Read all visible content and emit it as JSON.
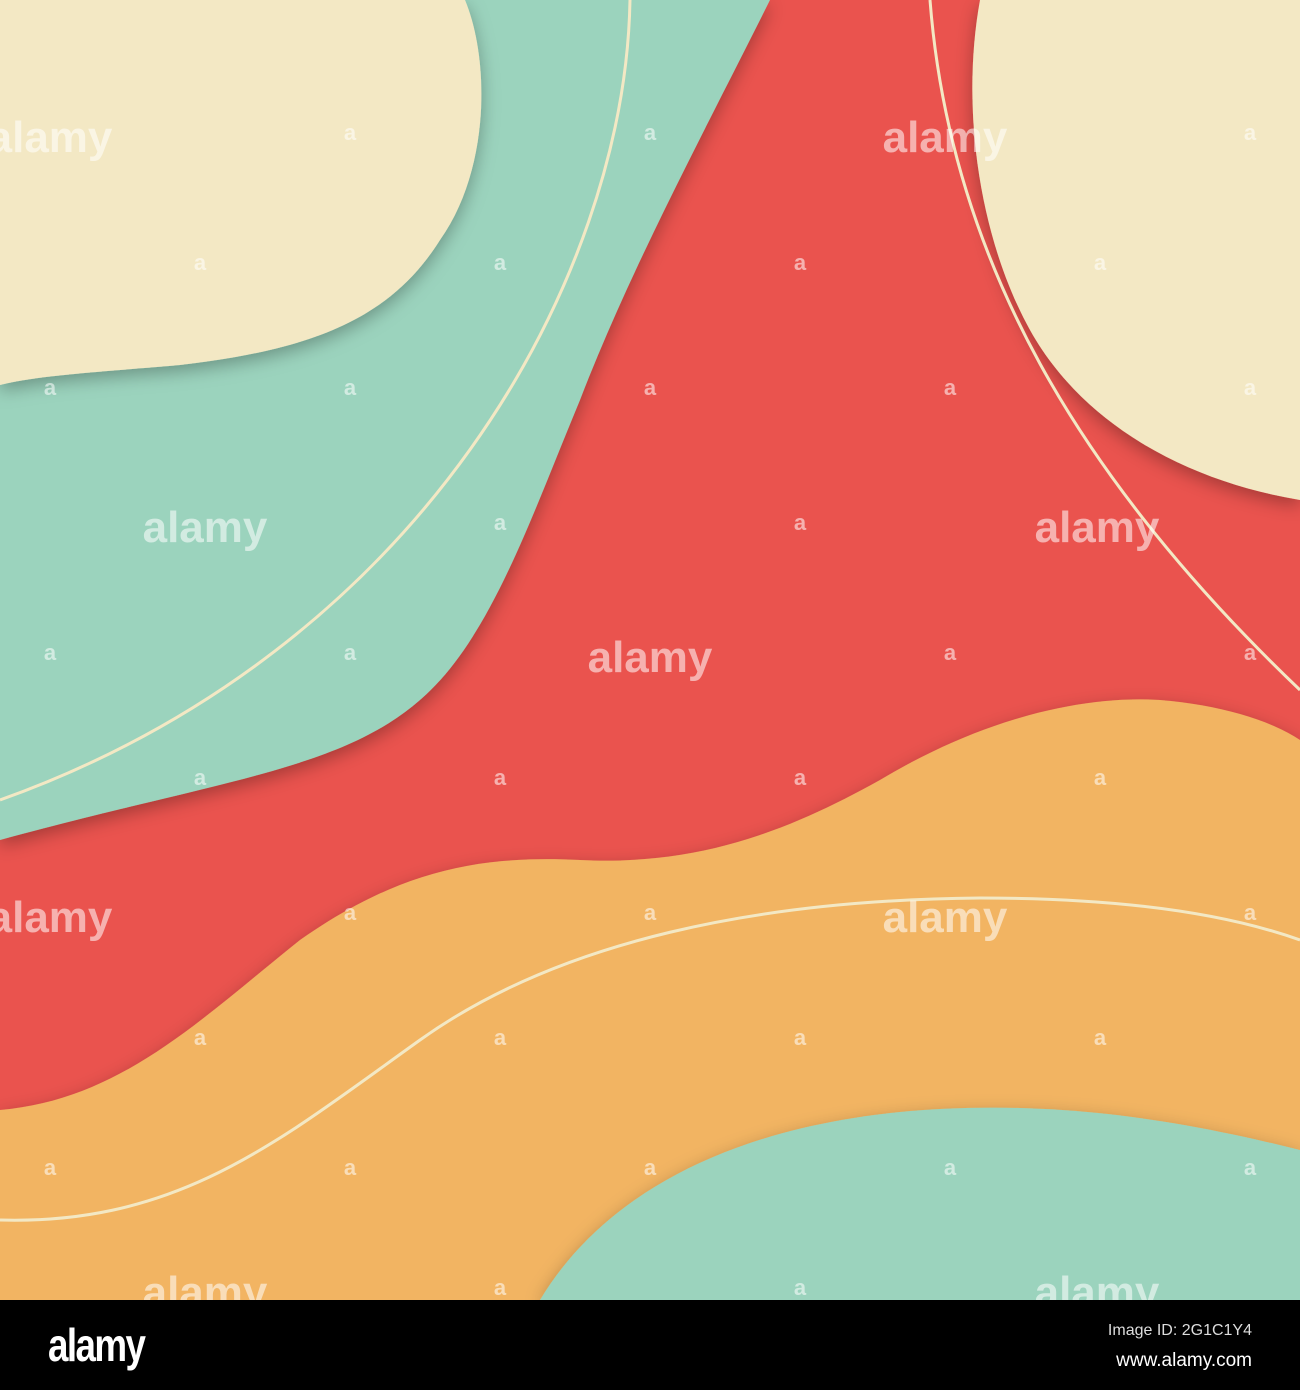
{
  "colors": {
    "cream": "#F3E8C4",
    "mint": "#9BD3BD",
    "red": "#EA534E",
    "orange": "#F2B462"
  },
  "watermark": "alamy",
  "footer": {
    "logo": "alamy",
    "image_id": "Image ID: 2G1C1Y4",
    "url": "www.alamy.com"
  }
}
